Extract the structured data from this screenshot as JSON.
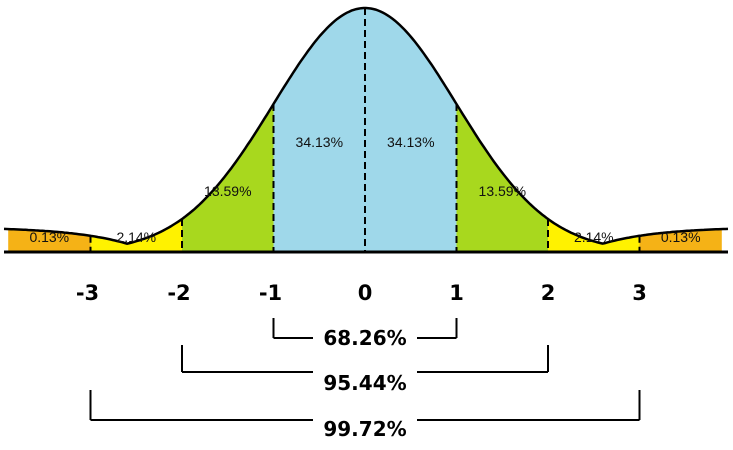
{
  "chart_data": {
    "type": "area",
    "x_ticks": [
      "-3",
      "-2",
      "-1",
      "0",
      "1",
      "2",
      "3"
    ],
    "xlim": [
      -3.9,
      3.9
    ],
    "regions": [
      {
        "from": -3.9,
        "to": -3,
        "percent": "0.13%",
        "color": "#f5b216"
      },
      {
        "from": -3,
        "to": -2,
        "percent": "2.14%",
        "color": "#fff200"
      },
      {
        "from": -2,
        "to": -1,
        "percent": "13.59%",
        "color": "#a8d81e"
      },
      {
        "from": -1,
        "to": 0,
        "percent": "34.13%",
        "color": "#9fd8ea"
      },
      {
        "from": 0,
        "to": 1,
        "percent": "34.13%",
        "color": "#9fd8ea"
      },
      {
        "from": 1,
        "to": 2,
        "percent": "13.59%",
        "color": "#a8d81e"
      },
      {
        "from": 2,
        "to": 3,
        "percent": "2.14%",
        "color": "#fff200"
      },
      {
        "from": 3,
        "to": 3.9,
        "percent": "0.13%",
        "color": "#f5b216"
      }
    ],
    "ranges": [
      {
        "from": -1,
        "to": 1,
        "label": "68.26%"
      },
      {
        "from": -2,
        "to": 2,
        "label": "95.44%"
      },
      {
        "from": -3,
        "to": 3,
        "label": "99.72%"
      }
    ]
  }
}
